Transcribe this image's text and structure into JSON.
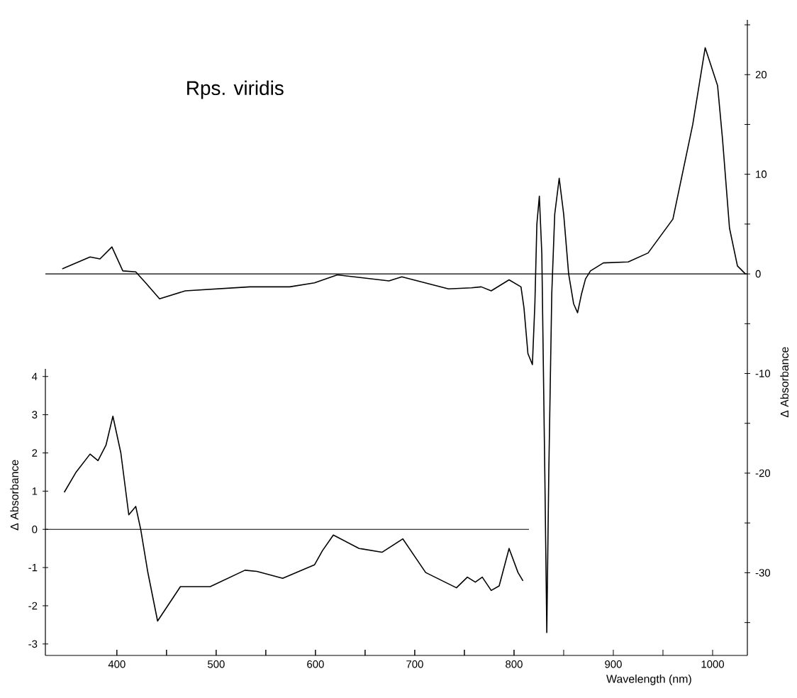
{
  "chart_data": [
    {
      "type": "line",
      "title": "Rps.  viridis",
      "xlabel": "Wavelength (nm)",
      "ylabel": "Δ Absorbance",
      "color": "#000000",
      "x": [
        345,
        373,
        383,
        395,
        406,
        419,
        429,
        443,
        469,
        534,
        574,
        599,
        622,
        674,
        687,
        734,
        757,
        767,
        777,
        795,
        807,
        810,
        814,
        818.5,
        821,
        823,
        825.5,
        828,
        831,
        833,
        835,
        838,
        841,
        845.5,
        850,
        855,
        860,
        864,
        868,
        872,
        877,
        890,
        915,
        935,
        960,
        980,
        992.5,
        1005,
        1010,
        1017,
        1025,
        1033
      ],
      "values": [
        0.5,
        1.7,
        1.5,
        2.7,
        0.3,
        0.2,
        -0.9,
        -2.5,
        -1.7,
        -1.3,
        -1.3,
        -0.9,
        -0.1,
        -0.7,
        -0.3,
        -1.5,
        -1.4,
        -1.3,
        -1.7,
        -0.6,
        -1.3,
        -3.4,
        -8,
        -9.1,
        -3,
        5,
        7.8,
        2,
        -20,
        -36,
        -20,
        -2,
        6,
        9.6,
        6,
        0,
        -3,
        -3.9,
        -2,
        -0.5,
        0.3,
        1.1,
        1.2,
        2.1,
        5.5,
        15,
        22.7,
        18.9,
        13.5,
        4.6,
        0.8,
        0
      ],
      "xlim": [
        328,
        1035
      ],
      "ylim": [
        -38.3,
        25.5
      ],
      "xticks": [
        {
          "value": 400,
          "label": null
        },
        {
          "value": 450,
          "label": null
        },
        {
          "value": 500,
          "label": null
        },
        {
          "value": 550,
          "label": null
        },
        {
          "value": 600,
          "label": null
        },
        {
          "value": 650,
          "label": null
        },
        {
          "value": 700,
          "label": null
        },
        {
          "value": 750,
          "label": null
        },
        {
          "value": 800,
          "label": null
        },
        {
          "value": 850,
          "label": null
        },
        900,
        {
          "value": 950,
          "label": null
        },
        1000
      ],
      "yticks": [
        {
          "value": -35,
          "label": null
        },
        -30,
        {
          "value": -25,
          "label": null
        },
        -20,
        {
          "value": -15,
          "label": null
        },
        -10,
        {
          "value": -5,
          "label": null
        },
        0,
        {
          "value": 5,
          "label": null
        },
        10,
        {
          "value": 15,
          "label": null
        },
        20,
        {
          "value": 25,
          "label": null
        }
      ],
      "ref_lines": [
        {
          "axis": "y",
          "value": 0
        }
      ]
    },
    {
      "type": "line",
      "ylabel": "Δ Absorbance",
      "color": "#000000",
      "xticks": [
        400,
        {
          "value": 450,
          "label": null
        },
        500,
        {
          "value": 550,
          "label": null
        },
        600,
        {
          "value": 650,
          "label": null
        },
        700,
        {
          "value": 750,
          "label": null
        },
        800
      ],
      "x": [
        347,
        359,
        373,
        381,
        389,
        396,
        404,
        412,
        419,
        424,
        431,
        441,
        464,
        494,
        529,
        541,
        567,
        599,
        607,
        618,
        644,
        667,
        688,
        711,
        742,
        753,
        761,
        768,
        777,
        785,
        795,
        804,
        809
      ],
      "values": [
        0.97,
        1.5,
        1.97,
        1.8,
        2.2,
        2.96,
        2.0,
        0.38,
        0.6,
        0,
        -1.1,
        -2.4,
        -1.5,
        -1.5,
        -1.07,
        -1.1,
        -1.28,
        -0.93,
        -0.56,
        -0.15,
        -0.5,
        -0.6,
        -0.25,
        -1.13,
        -1.53,
        -1.25,
        -1.38,
        -1.25,
        -1.6,
        -1.48,
        -0.5,
        -1.13,
        -1.35
      ],
      "xlim": [
        328,
        815
      ],
      "ylim": [
        -3.3,
        4.2
      ],
      "yticks": [
        -3,
        -2,
        -1,
        0,
        1,
        2,
        3,
        4
      ],
      "ref_lines": [
        {
          "axis": "y",
          "value": 0
        }
      ]
    }
  ]
}
